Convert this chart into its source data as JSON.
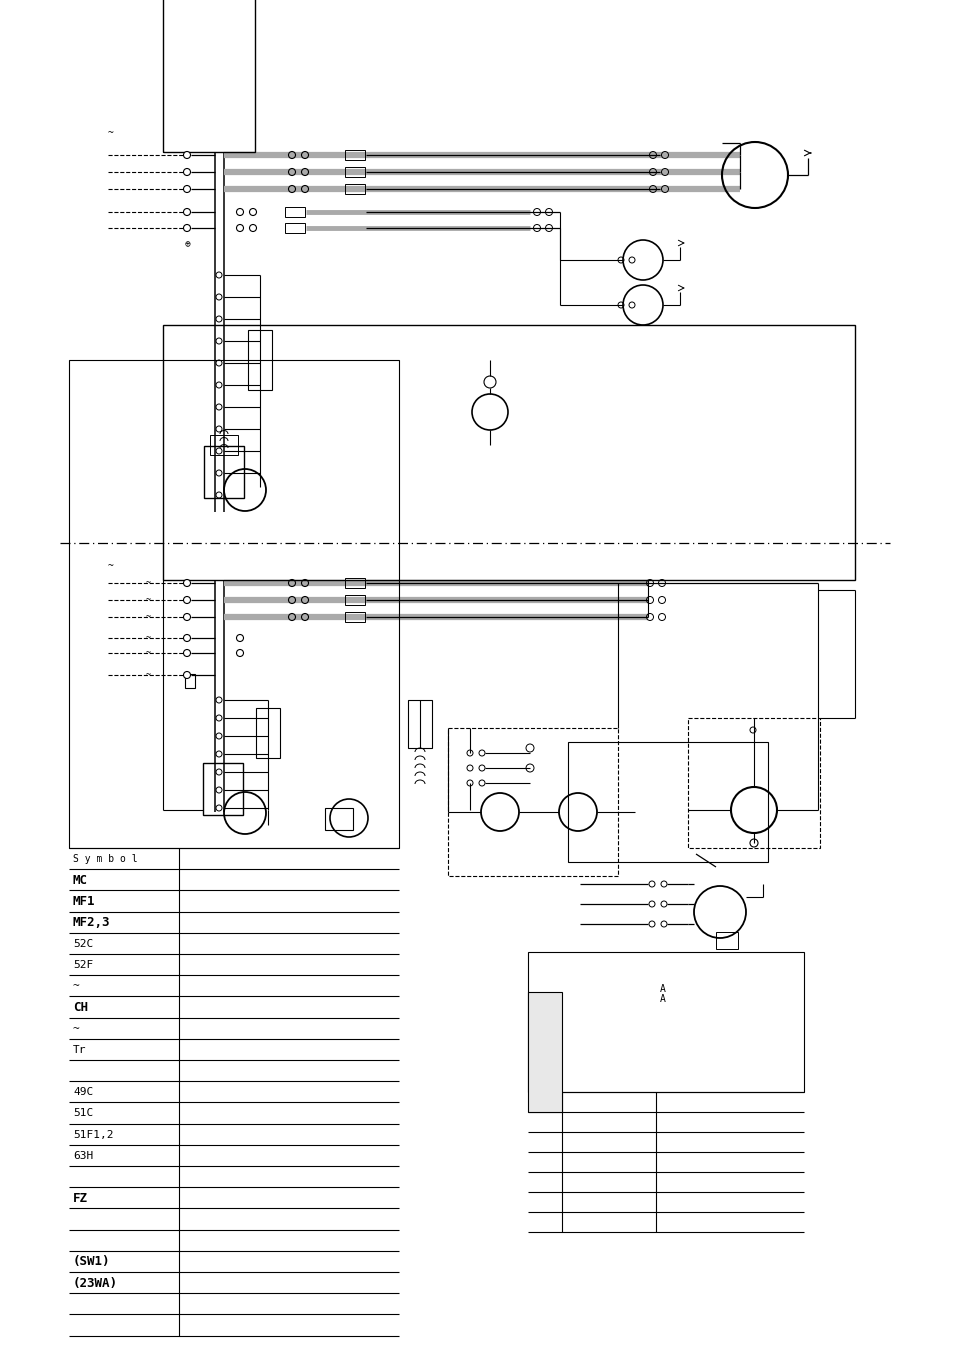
{
  "bg_color": "#ffffff",
  "lc": "#000000",
  "gc": "#aaaaaa",
  "table_symbols": [
    "S y m b o l",
    "MC",
    "MF1",
    "MF2,3",
    "52C",
    "52F",
    "~",
    "CH",
    "~",
    "Tr",
    "",
    "49C",
    "51C",
    "51F1,2",
    "63H",
    "",
    "FZ",
    "",
    "",
    "(SW1)",
    "(23WA)",
    "",
    ""
  ],
  "bold_syms": [
    "MC",
    "MF1",
    "MF2,3",
    "CH",
    "FZ",
    "(SW1)",
    "(23WA)"
  ],
  "detail_label_a": "A",
  "figw": 9.54,
  "figh": 13.51,
  "dpi": 100
}
